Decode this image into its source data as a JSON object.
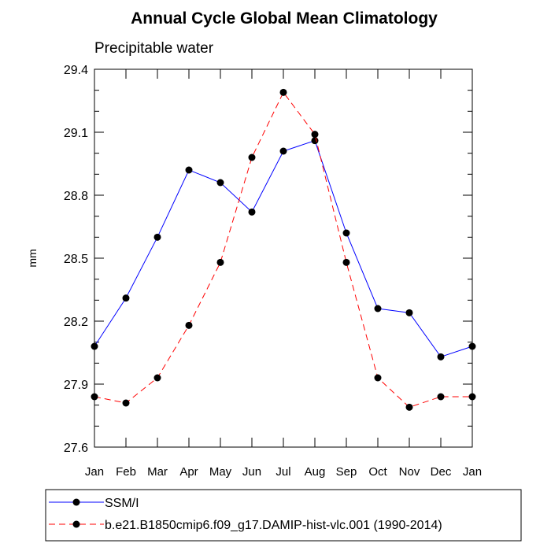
{
  "chart_data": {
    "type": "line",
    "title": "Annual Cycle Global Mean Climatology",
    "subtitle": "Precipitable water",
    "xlabel": "",
    "ylabel": "mm",
    "categories": [
      "Jan",
      "Feb",
      "Mar",
      "Apr",
      "May",
      "Jun",
      "Jul",
      "Aug",
      "Sep",
      "Oct",
      "Nov",
      "Dec",
      "Jan"
    ],
    "ylim": [
      27.6,
      29.4
    ],
    "yticks": [
      "27.6",
      "27.9",
      "28.2",
      "28.5",
      "28.8",
      "29.1",
      "29.4"
    ],
    "series": [
      {
        "name": "SSM/I",
        "color": "#0000ff",
        "dash": "solid",
        "values": [
          28.08,
          28.31,
          28.6,
          28.92,
          28.86,
          28.72,
          29.01,
          29.06,
          28.62,
          28.26,
          28.24,
          28.03,
          28.08
        ]
      },
      {
        "name": "b.e21.B1850cmip6.f09_g17.DAMIP-hist-vlc.001 (1990-2014)",
        "color": "#ff0000",
        "dash": "dashed",
        "values": [
          27.84,
          27.81,
          27.93,
          28.18,
          28.48,
          28.98,
          29.29,
          29.09,
          28.48,
          27.93,
          27.79,
          27.84,
          27.84
        ]
      }
    ],
    "grid": false,
    "legend_position": "bottom"
  }
}
